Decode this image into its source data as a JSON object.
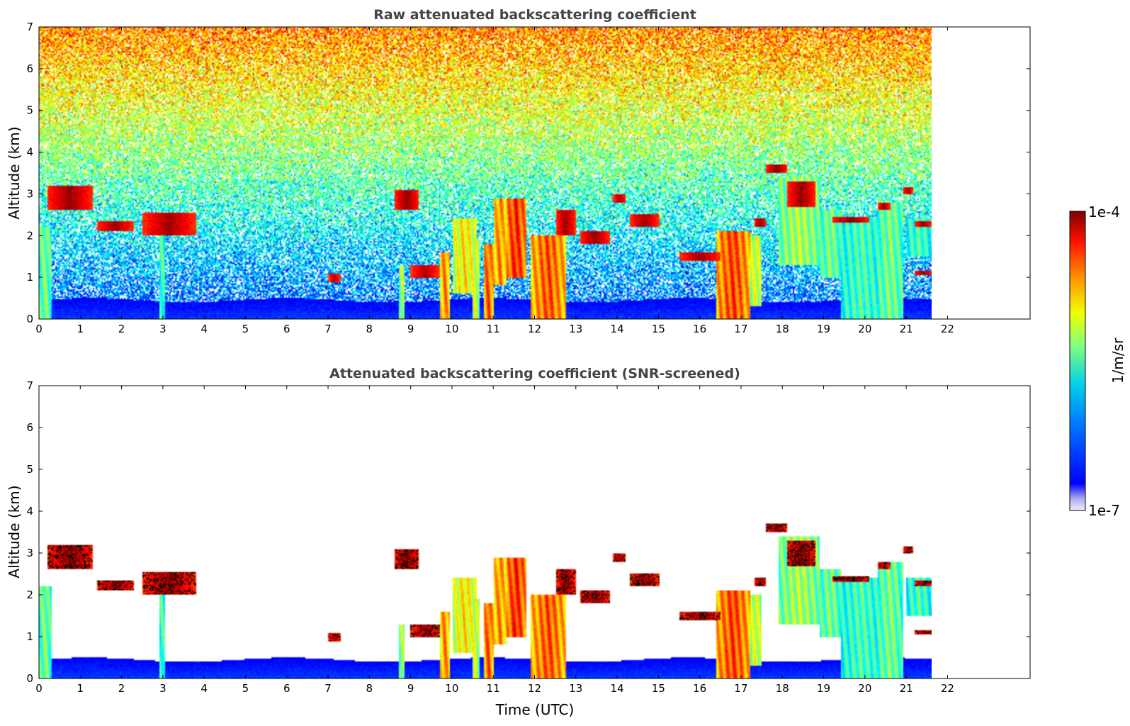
{
  "chart_data": [
    {
      "type": "heatmap",
      "title": "Raw attenuated backscattering coefficient",
      "xlabel": "",
      "ylabel": "Altitude (km)",
      "x_ticks": [
        "0",
        "1",
        "2",
        "3",
        "4",
        "5",
        "6",
        "7",
        "8",
        "9",
        "10",
        "11",
        "12",
        "13",
        "14",
        "15",
        "16",
        "17",
        "18",
        "19",
        "20",
        "21",
        "22"
      ],
      "y_ticks": [
        "0",
        "1",
        "2",
        "3",
        "4",
        "5",
        "6",
        "7"
      ],
      "xlim": [
        0,
        24
      ],
      "ylim": [
        0,
        7
      ],
      "data_extent_x": [
        0,
        21.6
      ],
      "noise": "strong",
      "features": [
        {
          "kind": "boundary-layer",
          "x": [
            0,
            21.6
          ],
          "top_km": 0.45,
          "value": 0.12
        },
        {
          "kind": "aerosol-column",
          "x": [
            0.0,
            0.3
          ],
          "y": [
            0,
            2.2
          ],
          "value": 0.5
        },
        {
          "kind": "aerosol-column",
          "x": [
            2.9,
            3.05
          ],
          "y": [
            0,
            2.3
          ],
          "value": 0.45
        },
        {
          "kind": "aerosol-column",
          "x": [
            8.7,
            8.85
          ],
          "y": [
            0,
            1.3
          ],
          "value": 0.55
        },
        {
          "kind": "aerosol-column",
          "x": [
            9.7,
            9.95
          ],
          "y": [
            0,
            1.6
          ],
          "value": 0.75
        },
        {
          "kind": "aerosol-column",
          "x": [
            10.0,
            10.6
          ],
          "y": [
            0.6,
            2.4
          ],
          "value": 0.65
        },
        {
          "kind": "aerosol-column",
          "x": [
            10.5,
            10.65
          ],
          "y": [
            0,
            1.9
          ],
          "value": 0.6
        },
        {
          "kind": "aerosol-column",
          "x": [
            10.75,
            11.0
          ],
          "y": [
            0,
            1.8
          ],
          "value": 0.8
        },
        {
          "kind": "aerosol-column",
          "x": [
            11.0,
            11.3
          ],
          "y": [
            0.8,
            2.9
          ],
          "value": 0.75
        },
        {
          "kind": "aerosol-column",
          "x": [
            11.3,
            11.8
          ],
          "y": [
            1.0,
            2.9
          ],
          "value": 0.85
        },
        {
          "kind": "aerosol-column",
          "x": [
            11.9,
            12.75
          ],
          "y": [
            0,
            2.0
          ],
          "value": 0.8
        },
        {
          "kind": "aerosol-column",
          "x": [
            16.4,
            17.2
          ],
          "y": [
            0,
            2.1
          ],
          "value": 0.82
        },
        {
          "kind": "aerosol-column",
          "x": [
            17.2,
            17.5
          ],
          "y": [
            0.3,
            2.0
          ],
          "value": 0.6
        },
        {
          "kind": "aerosol-column",
          "x": [
            17.9,
            18.9
          ],
          "y": [
            1.3,
            3.4
          ],
          "value": 0.55
        },
        {
          "kind": "aerosol-column",
          "x": [
            18.9,
            19.4
          ],
          "y": [
            1.0,
            2.6
          ],
          "value": 0.5
        },
        {
          "kind": "aerosol-column",
          "x": [
            19.4,
            20.4
          ],
          "y": [
            0,
            2.4
          ],
          "value": 0.45
        },
        {
          "kind": "aerosol-column",
          "x": [
            20.3,
            20.9
          ],
          "y": [
            0,
            2.8
          ],
          "value": 0.5
        },
        {
          "kind": "aerosol-column",
          "x": [
            21.0,
            21.6
          ],
          "y": [
            1.5,
            2.4
          ],
          "value": 0.45
        },
        {
          "kind": "cloud-layer",
          "x": [
            0.2,
            1.3
          ],
          "y": [
            2.6,
            3.2
          ],
          "value": 0.98
        },
        {
          "kind": "cloud-layer",
          "x": [
            1.4,
            2.3
          ],
          "y": [
            2.1,
            2.35
          ],
          "value": 0.97
        },
        {
          "kind": "cloud-layer",
          "x": [
            2.5,
            3.8
          ],
          "y": [
            2.0,
            2.55
          ],
          "value": 0.97
        },
        {
          "kind": "cloud-layer",
          "x": [
            7.0,
            7.3
          ],
          "y": [
            0.9,
            1.1
          ],
          "value": 0.95
        },
        {
          "kind": "cloud-layer",
          "x": [
            8.6,
            9.2
          ],
          "y": [
            2.6,
            3.1
          ],
          "value": 0.98
        },
        {
          "kind": "cloud-layer",
          "x": [
            9.0,
            9.7
          ],
          "y": [
            1.0,
            1.3
          ],
          "value": 0.96
        },
        {
          "kind": "cloud-layer",
          "x": [
            12.5,
            13.0
          ],
          "y": [
            2.0,
            2.6
          ],
          "value": 0.97
        },
        {
          "kind": "cloud-layer",
          "x": [
            13.1,
            13.8
          ],
          "y": [
            1.8,
            2.1
          ],
          "value": 0.98
        },
        {
          "kind": "cloud-layer",
          "x": [
            13.9,
            14.2
          ],
          "y": [
            2.8,
            3.0
          ],
          "value": 0.97
        },
        {
          "kind": "cloud-layer",
          "x": [
            14.3,
            15.0
          ],
          "y": [
            2.2,
            2.5
          ],
          "value": 0.97
        },
        {
          "kind": "cloud-layer",
          "x": [
            15.5,
            16.5
          ],
          "y": [
            1.4,
            1.6
          ],
          "value": 0.97
        },
        {
          "kind": "cloud-layer",
          "x": [
            17.3,
            17.6
          ],
          "y": [
            2.2,
            2.4
          ],
          "value": 0.98
        },
        {
          "kind": "cloud-layer",
          "x": [
            17.6,
            18.1
          ],
          "y": [
            3.5,
            3.7
          ],
          "value": 0.99
        },
        {
          "kind": "cloud-layer",
          "x": [
            18.1,
            18.8
          ],
          "y": [
            2.7,
            3.3
          ],
          "value": 0.98
        },
        {
          "kind": "cloud-layer",
          "x": [
            19.2,
            20.1
          ],
          "y": [
            2.3,
            2.45
          ],
          "value": 0.99
        },
        {
          "kind": "cloud-layer",
          "x": [
            20.3,
            20.6
          ],
          "y": [
            2.6,
            2.8
          ],
          "value": 0.97
        },
        {
          "kind": "cloud-layer",
          "x": [
            20.9,
            21.15
          ],
          "y": [
            3.0,
            3.15
          ],
          "value": 0.96
        },
        {
          "kind": "cloud-layer",
          "x": [
            21.2,
            21.6
          ],
          "y": [
            1.05,
            1.15
          ],
          "value": 0.99
        },
        {
          "kind": "cloud-layer",
          "x": [
            21.2,
            21.6
          ],
          "y": [
            2.2,
            2.35
          ],
          "value": 0.98
        }
      ]
    },
    {
      "type": "heatmap",
      "title": "Attenuated backscattering coefficient (SNR-screened)",
      "xlabel": "Time (UTC)",
      "ylabel": "Altitude (km)",
      "x_ticks": [
        "0",
        "1",
        "2",
        "3",
        "4",
        "5",
        "6",
        "7",
        "8",
        "9",
        "10",
        "11",
        "12",
        "13",
        "14",
        "15",
        "16",
        "17",
        "18",
        "19",
        "20",
        "21",
        "22"
      ],
      "y_ticks": [
        "0",
        "1",
        "2",
        "3",
        "4",
        "5",
        "6",
        "7"
      ],
      "xlim": [
        0,
        24
      ],
      "ylim": [
        0,
        7
      ],
      "data_extent_x": [
        0,
        21.6
      ],
      "noise": "screened",
      "features": "same as raw panel; low-SNR pixels removed (white)"
    }
  ],
  "colorbar": {
    "label": "1/m/sr",
    "max_label": "1e-4",
    "min_label": "1e-7",
    "colormap": "jet",
    "scale": "log"
  }
}
